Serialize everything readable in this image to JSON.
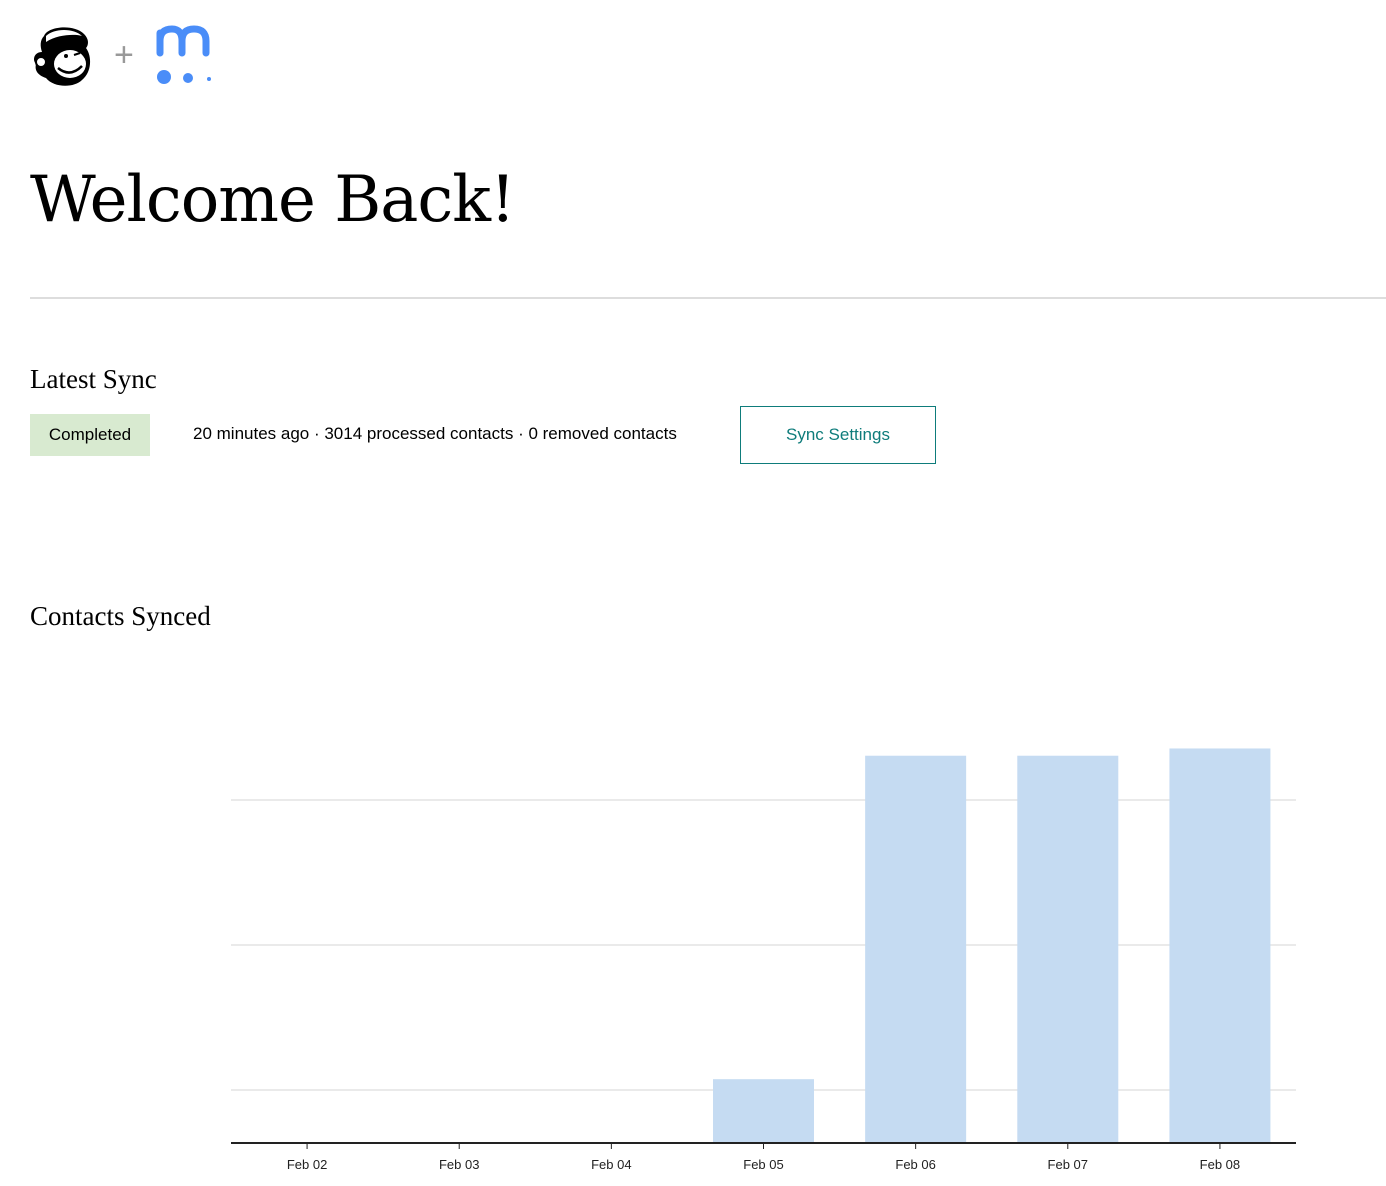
{
  "header": {
    "logos": [
      "Mailchimp",
      "meetup"
    ],
    "separator": "+"
  },
  "page_title": "Welcome Back!",
  "latest_sync": {
    "heading": "Latest Sync",
    "status": "Completed",
    "status_color": "#d8ead0",
    "details": "20 minutes ago · 3014 processed contacts · 0 removed contacts",
    "settings_button": "Sync Settings",
    "accent": "#0e7c7b"
  },
  "chart_data": {
    "type": "bar",
    "title": "Contacts Synced",
    "categories": [
      "Feb 02",
      "Feb 03",
      "Feb 04",
      "Feb 05",
      "Feb 06",
      "Feb 07",
      "Feb 08"
    ],
    "values": [
      0,
      0,
      0,
      440,
      2670,
      2670,
      2720
    ],
    "gridlines": [
      365,
      1365,
      2365
    ],
    "ylim": [
      0,
      3130
    ],
    "grid": true,
    "ytick_labels": false,
    "bar_color": "#c5dbf2"
  }
}
